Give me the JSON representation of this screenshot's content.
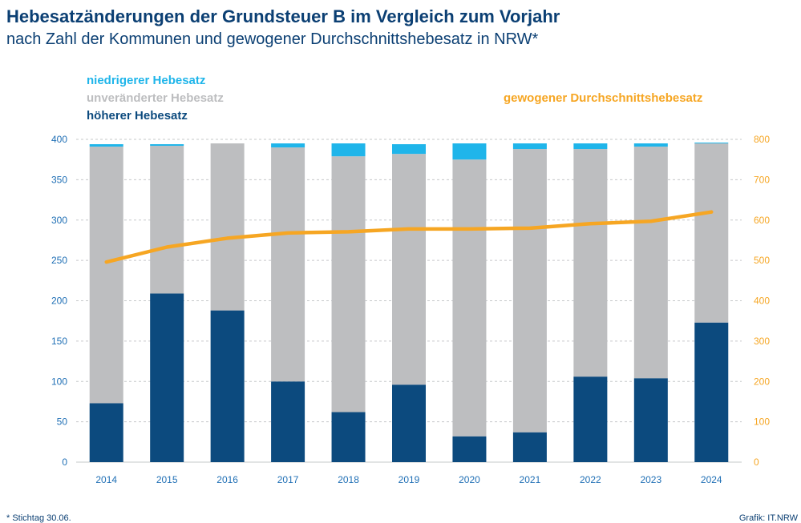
{
  "colors": {
    "lower": "#1fb5ea",
    "unchanged": "#bdbec0",
    "higher": "#0c4a7e",
    "average": "#f6a623",
    "axis_left": "#1f6fb5",
    "axis_right": "#f6a623",
    "grid": "#c6c8ca"
  },
  "chart_data": {
    "type": "bar",
    "title": "Hebesatzänderungen der Grundsteuer B im Vergleich zum Vorjahr",
    "subtitle": "nach Zahl der Kommunen und gewogener Durchschnittshebesatz in NRW*",
    "categories": [
      "2014",
      "2015",
      "2016",
      "2017",
      "2018",
      "2019",
      "2020",
      "2021",
      "2022",
      "2023",
      "2024"
    ],
    "stacked": true,
    "series": [
      {
        "name": "höherer Hebesatz",
        "values": [
          73,
          209,
          188,
          100,
          62,
          96,
          32,
          37,
          106,
          104,
          173
        ]
      },
      {
        "name": "unveränderter Hebesatz",
        "values": [
          318,
          183,
          207,
          290,
          317,
          286,
          343,
          351,
          282,
          287,
          222
        ]
      },
      {
        "name": "niedrigerer Hebesatz",
        "values": [
          3,
          2,
          0,
          5,
          16,
          12,
          20,
          7,
          7,
          4,
          1
        ]
      }
    ],
    "line_series": {
      "name": "gewogener Durchschnittshebesatz",
      "axis": "right",
      "values": [
        496,
        533,
        555,
        568,
        571,
        578,
        578,
        580,
        591,
        597,
        620
      ]
    },
    "ylim_left": [
      0,
      400
    ],
    "yticks_left": [
      "0",
      "50",
      "100",
      "150",
      "200",
      "250",
      "300",
      "350",
      "400"
    ],
    "ylim_right": [
      0,
      800
    ],
    "yticks_right": [
      "0",
      "100",
      "200",
      "300",
      "400",
      "500",
      "600",
      "700",
      "800"
    ],
    "grid": true,
    "legend": {
      "placement": "top-left",
      "line_legend_placement": "top-right"
    }
  },
  "footnote": "* Stichtag 30.06.",
  "credit": "Grafik: IT.NRW"
}
